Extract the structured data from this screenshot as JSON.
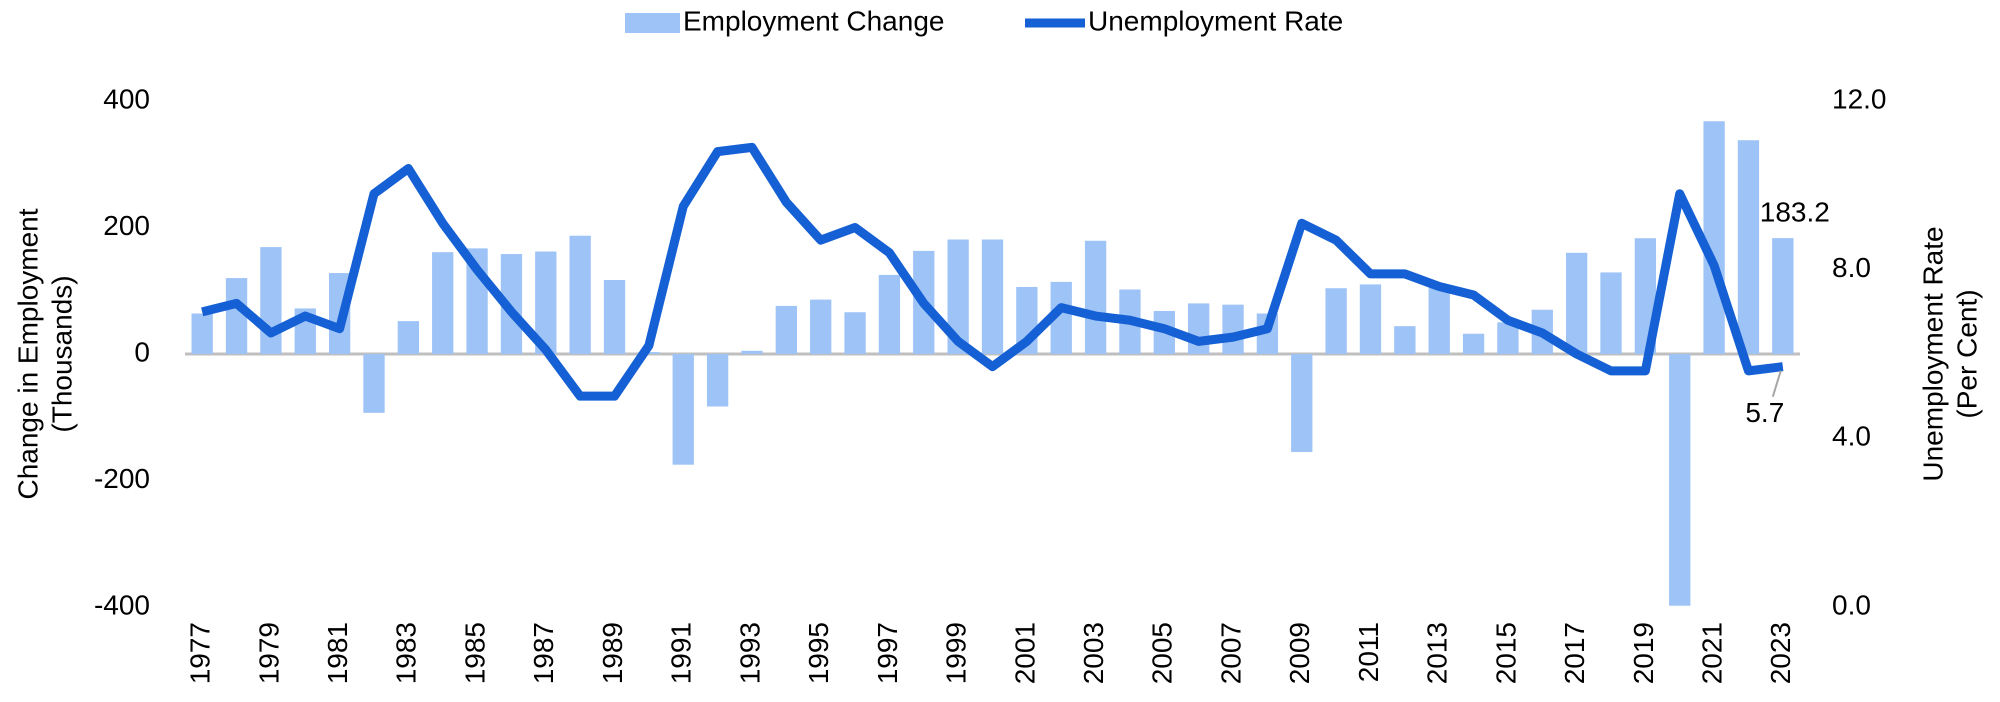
{
  "chart_data": {
    "type": "bar_line",
    "y_label": [
      "Change in Employment",
      "(Thousands)"
    ],
    "y2_label": [
      "Unemployment Rate",
      "(Per Cent)"
    ],
    "categories": [
      "1977",
      null,
      "1979",
      null,
      "1981",
      null,
      "1983",
      null,
      "1985",
      null,
      "1987",
      null,
      "1989",
      null,
      "1991",
      null,
      "1993",
      null,
      "1995",
      null,
      "1997",
      null,
      "1999",
      null,
      "2001",
      null,
      "2003",
      null,
      "2005",
      null,
      "2007",
      null,
      "2009",
      null,
      "2011",
      null,
      "2013",
      null,
      "2015",
      null,
      "2017",
      null,
      "2019",
      null,
      "2021",
      null,
      "2023"
    ],
    "series": [
      {
        "name": "Employment Change",
        "type": "bar",
        "color": "#9dc3f7",
        "axis": "y",
        "values": [
          64,
          120,
          169,
          72,
          128,
          -93,
          52,
          161,
          167,
          158,
          162,
          187,
          117,
          3,
          -175,
          -83,
          5,
          76,
          86,
          66,
          125,
          163,
          181,
          181,
          106,
          114,
          179,
          102,
          68,
          80,
          78,
          64,
          -155,
          104,
          110,
          44,
          108,
          32,
          50,
          70,
          160,
          129,
          183,
          -398,
          368,
          338,
          183.2
        ]
      },
      {
        "name": "Unemployment Rate",
        "type": "line",
        "color": "#1560d4",
        "axis": "y2",
        "values": [
          7.0,
          7.2,
          6.5,
          6.9,
          6.6,
          9.8,
          10.4,
          9.1,
          8.0,
          7.0,
          6.1,
          5.0,
          5.0,
          6.2,
          9.5,
          10.8,
          10.9,
          9.6,
          8.7,
          9.0,
          8.4,
          7.2,
          6.3,
          5.7,
          6.3,
          7.1,
          6.9,
          6.8,
          6.6,
          6.3,
          6.4,
          6.6,
          9.1,
          8.7,
          7.9,
          7.9,
          7.6,
          7.4,
          6.8,
          6.5,
          6.0,
          5.6,
          5.6,
          9.8,
          8.1,
          5.6,
          5.7
        ]
      }
    ],
    "ylim": [
      -400,
      400
    ],
    "yticks": [
      -400,
      -200,
      0,
      200,
      400
    ],
    "y2lim": [
      0,
      12
    ],
    "y2ticks": [
      {
        "value": 0,
        "label": "0.0"
      },
      {
        "value": 4,
        "label": "4.0"
      },
      {
        "value": 8,
        "label": "8.0"
      },
      {
        "value": 12,
        "label": "12.0"
      }
    ],
    "legend": "top"
  }
}
